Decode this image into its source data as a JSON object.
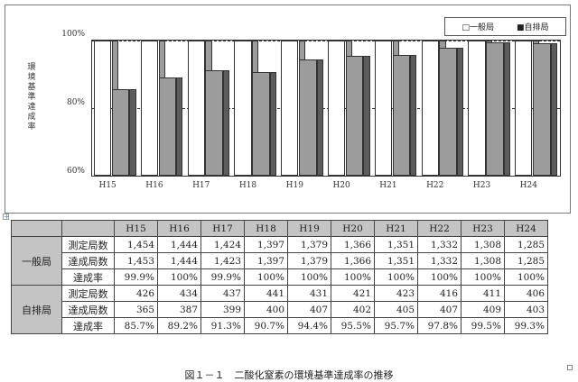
{
  "chart_data": {
    "type": "bar",
    "title": "",
    "xlabel": "",
    "ylabel": "環境基準達成率",
    "ylim": [
      60,
      100
    ],
    "yticks": [
      "60%",
      "80%",
      "100%"
    ],
    "categories": [
      "H15",
      "H16",
      "H17",
      "H18",
      "H19",
      "H20",
      "H21",
      "H22",
      "H23",
      "H24"
    ],
    "series": [
      {
        "name": "一般局",
        "color": "#ffffff",
        "values": [
          99.9,
          100,
          99.9,
          100,
          100,
          100,
          100,
          100,
          100,
          100
        ]
      },
      {
        "name": "自排局",
        "color": "#9c9c9c",
        "values": [
          85.7,
          89.2,
          91.3,
          90.7,
          94.4,
          95.5,
          95.7,
          97.8,
          99.5,
          99.3
        ]
      }
    ],
    "grid": false,
    "legend_position": "top-right"
  },
  "chart": {
    "ylabel": "環境基準達成率",
    "yticks": [
      "100%",
      "80%",
      "60%"
    ],
    "legend": [
      {
        "label": "□一般局"
      },
      {
        "label": "■自排局"
      }
    ],
    "xticks": [
      "H15",
      "H16",
      "H17",
      "H18",
      "H19",
      "H20",
      "H21",
      "H22",
      "H23",
      "H24"
    ]
  },
  "table": {
    "headers": [
      "H15",
      "H16",
      "H17",
      "H18",
      "H19",
      "H20",
      "H21",
      "H22",
      "H23",
      "H24"
    ],
    "groups": [
      {
        "name": "一般局",
        "rows": [
          {
            "label": "測定局数",
            "values": [
              "1,454",
              "1,444",
              "1,424",
              "1,397",
              "1,379",
              "1,366",
              "1,351",
              "1,332",
              "1,308",
              "1,285"
            ]
          },
          {
            "label": "達成局数",
            "values": [
              "1,453",
              "1,444",
              "1,423",
              "1,397",
              "1,379",
              "1,366",
              "1,351",
              "1,332",
              "1,308",
              "1,285"
            ]
          },
          {
            "label": "達成率",
            "values": [
              "99.9%",
              "100%",
              "99.9%",
              "100%",
              "100%",
              "100%",
              "100%",
              "100%",
              "100%",
              "100%"
            ]
          }
        ]
      },
      {
        "name": "自排局",
        "rows": [
          {
            "label": "測定局数",
            "values": [
              "426",
              "434",
              "437",
              "441",
              "431",
              "421",
              "423",
              "416",
              "411",
              "406"
            ]
          },
          {
            "label": "達成局数",
            "values": [
              "365",
              "387",
              "399",
              "400",
              "407",
              "402",
              "405",
              "407",
              "409",
              "403"
            ]
          },
          {
            "label": "達成率",
            "values": [
              "85.7%",
              "89.2%",
              "91.3%",
              "90.7%",
              "94.4%",
              "95.5%",
              "95.7%",
              "97.8%",
              "99.5%",
              "99.3%"
            ]
          }
        ]
      }
    ]
  },
  "caption": "図１－１　二酸化窒素の環境基準達成率の推移"
}
